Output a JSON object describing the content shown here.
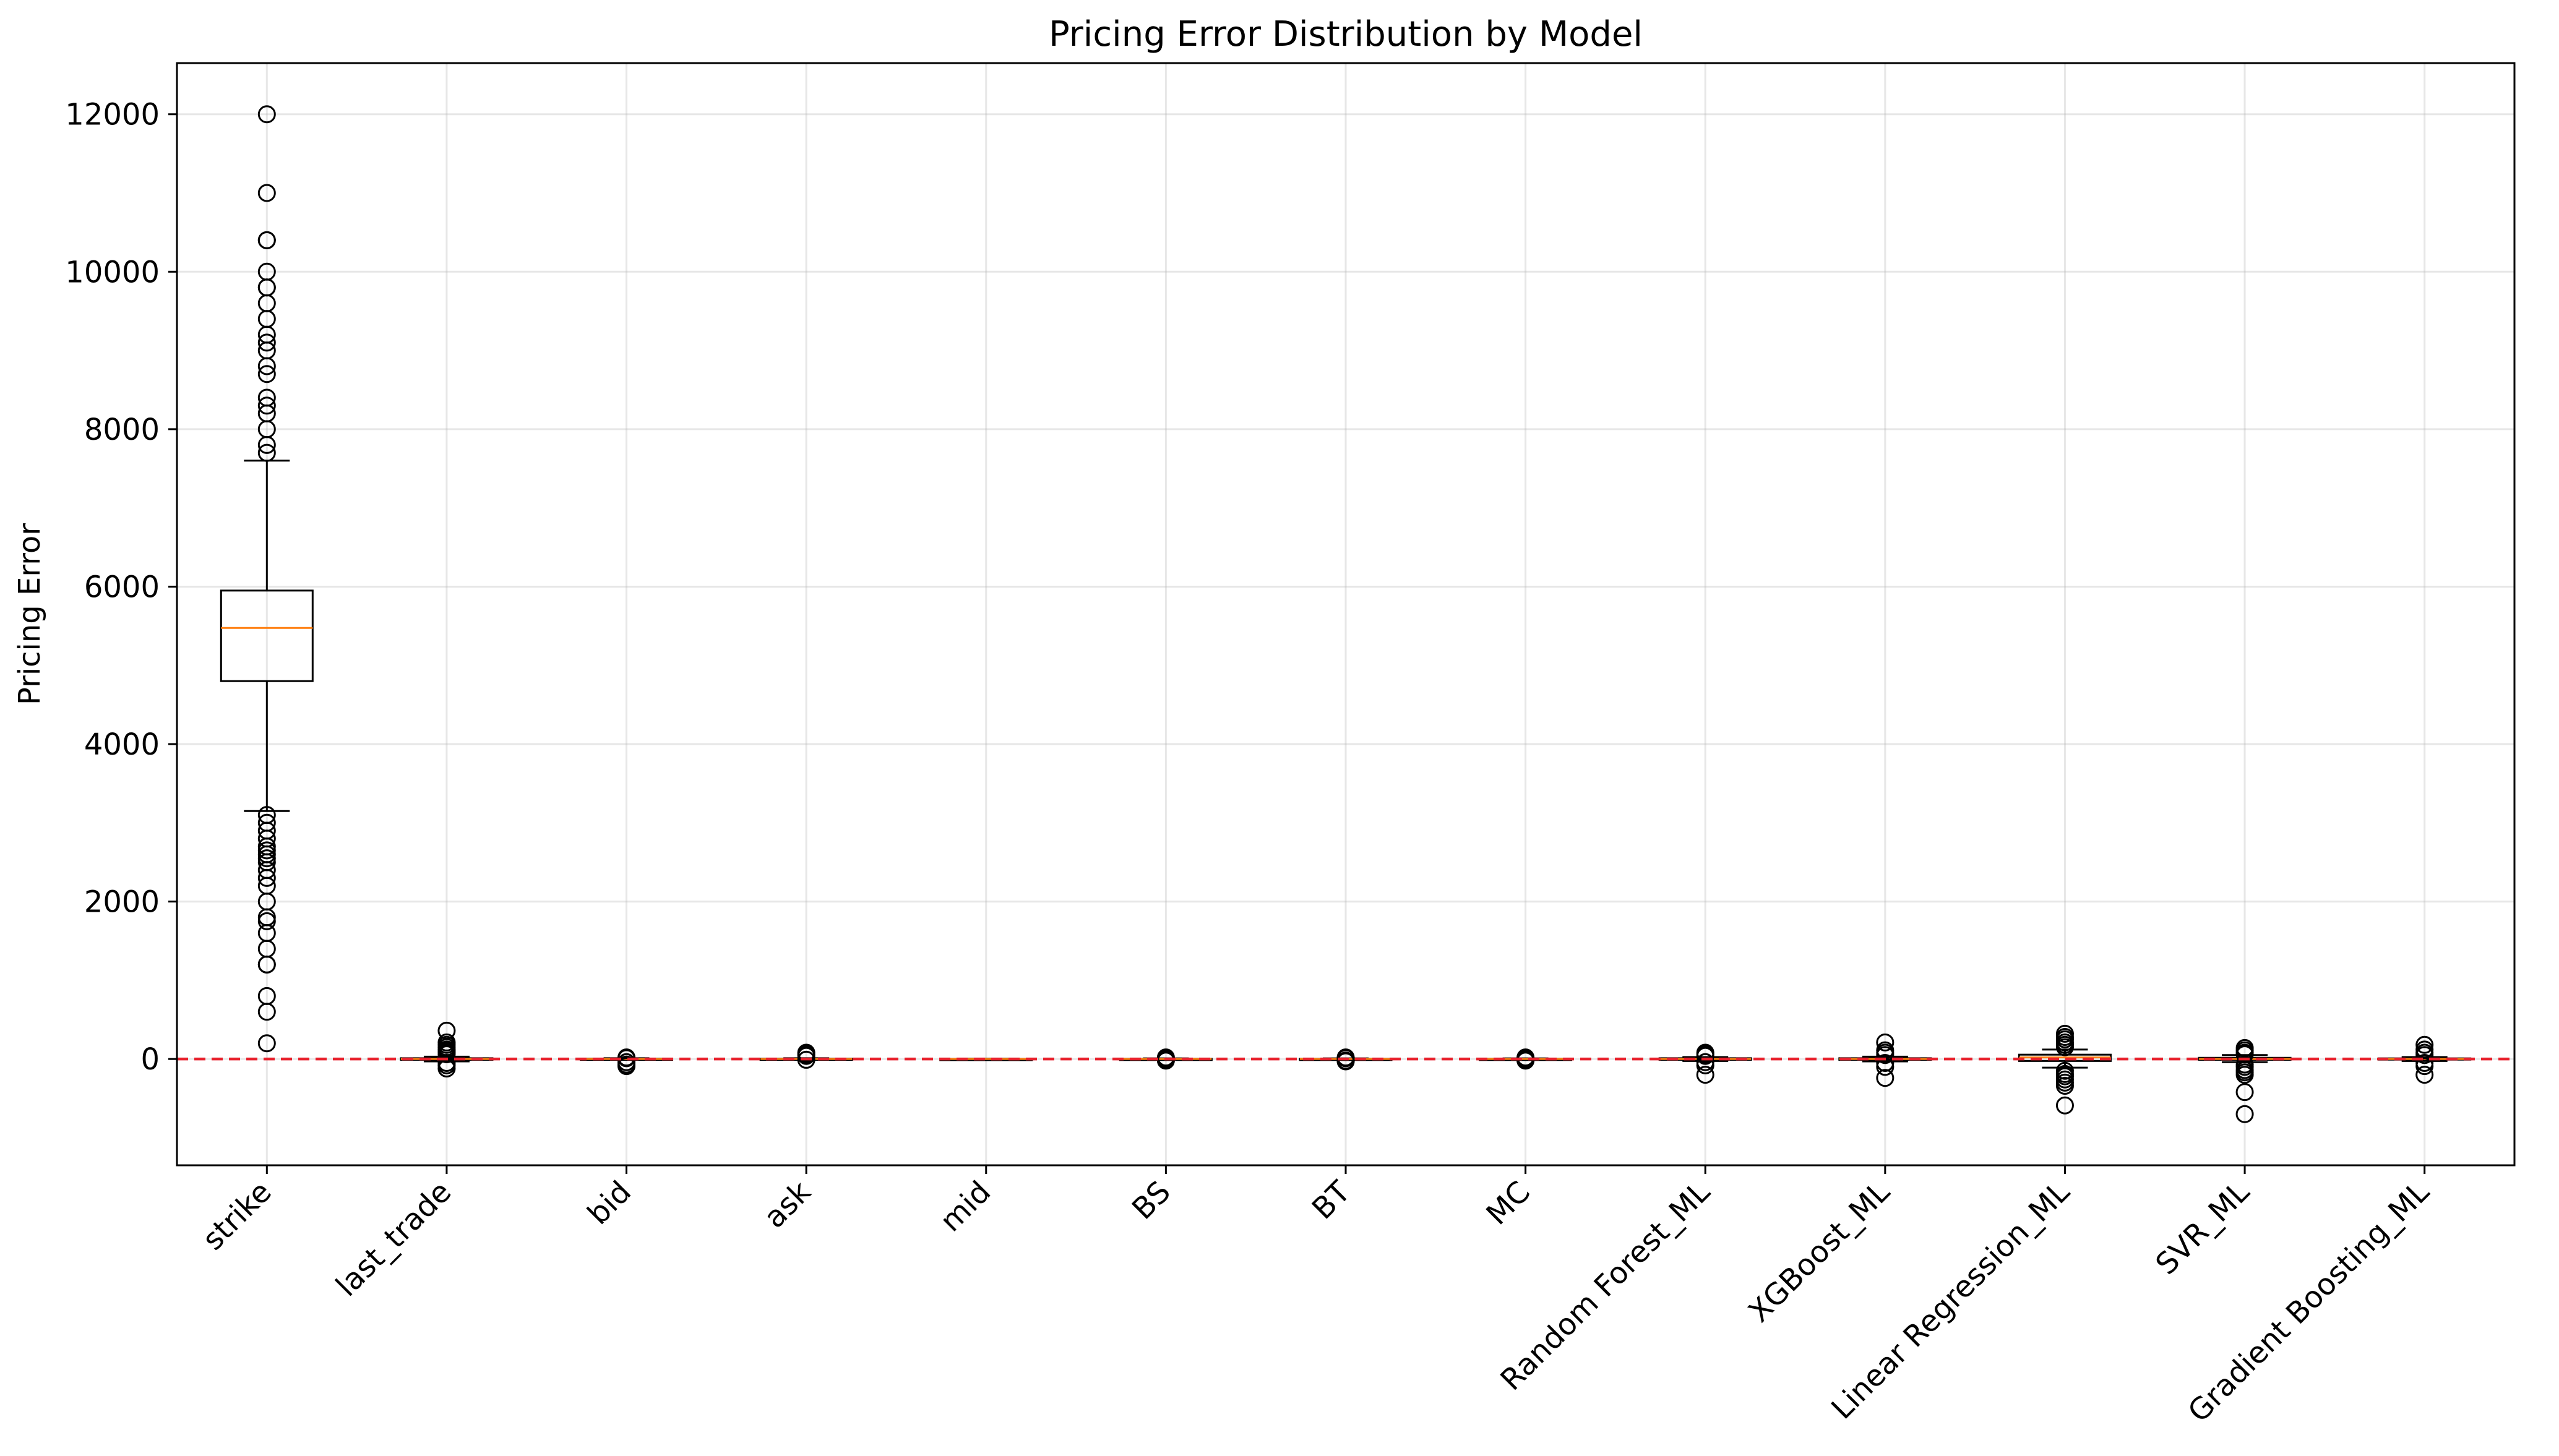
{
  "chart_data": {
    "type": "box",
    "title": "Pricing Error Distribution by Model",
    "xlabel": "",
    "ylabel": "Pricing Error",
    "ylim": [
      -1350,
      12650
    ],
    "yticks": [
      0,
      2000,
      4000,
      6000,
      8000,
      10000,
      12000
    ],
    "grid": true,
    "reference_line": {
      "y": 0,
      "style": "dashed",
      "color": "#e8212c"
    },
    "colors": {
      "box": "#000000",
      "median": "#ff7f0e",
      "grid": "#b0b0b0"
    },
    "categories": [
      "strike",
      "last_trade",
      "bid",
      "ask",
      "mid",
      "BS",
      "BT",
      "MC",
      "Random Forest_ML",
      "XGBoost_ML",
      "Linear Regression_ML",
      "SVR_ML",
      "Gradient Boosting_ML"
    ],
    "boxes": [
      {
        "category": "strike",
        "q1": 4800,
        "median": 5475,
        "q3": 5950,
        "whisker_low": 3150,
        "whisker_high": 7600,
        "outliers": [
          12000,
          11000,
          10400,
          10400,
          10000,
          9800,
          9800,
          9600,
          9400,
          9200,
          9100,
          9000,
          8800,
          8700,
          8400,
          8300,
          8200,
          8000,
          7800,
          7700,
          3100,
          3000,
          2900,
          2800,
          2700,
          2650,
          2600,
          2550,
          2500,
          2400,
          2300,
          2200,
          2000,
          1800,
          1750,
          1600,
          1400,
          1200,
          1200,
          800,
          600,
          200
        ]
      },
      {
        "category": "last_trade",
        "q1": -10,
        "median": 0,
        "q3": 10,
        "whisker_low": -30,
        "whisker_high": 30,
        "outliers": [
          360,
          210,
          180,
          150,
          120,
          100,
          80,
          60,
          -50,
          -80,
          -120
        ]
      },
      {
        "category": "bid",
        "q1": -5,
        "median": 0,
        "q3": 5,
        "whisker_low": -10,
        "whisker_high": 10,
        "outliers": [
          20,
          10,
          -40,
          -70,
          -90
        ]
      },
      {
        "category": "ask",
        "q1": -5,
        "median": 0,
        "q3": 5,
        "whisker_low": -10,
        "whisker_high": 10,
        "outliers": [
          80,
          60,
          40,
          -10
        ]
      },
      {
        "category": "mid",
        "q1": -2,
        "median": 0,
        "q3": 2,
        "whisker_low": -5,
        "whisker_high": 5,
        "outliers": []
      },
      {
        "category": "BS",
        "q1": -3,
        "median": 0,
        "q3": 3,
        "whisker_low": -8,
        "whisker_high": 8,
        "outliers": [
          20,
          10,
          -10,
          -20
        ]
      },
      {
        "category": "BT",
        "q1": -3,
        "median": 0,
        "q3": 3,
        "whisker_low": -8,
        "whisker_high": 8,
        "outliers": [
          20,
          10,
          -20,
          -30
        ]
      },
      {
        "category": "MC",
        "q1": -3,
        "median": 0,
        "q3": 3,
        "whisker_low": -8,
        "whisker_high": 8,
        "outliers": [
          20,
          10,
          -10,
          -20
        ]
      },
      {
        "category": "Random Forest_ML",
        "q1": -10,
        "median": 0,
        "q3": 10,
        "whisker_low": -25,
        "whisker_high": 25,
        "outliers": [
          80,
          60,
          40,
          -40,
          -80,
          -200
        ]
      },
      {
        "category": "XGBoost_ML",
        "q1": -10,
        "median": 0,
        "q3": 10,
        "whisker_low": -30,
        "whisker_high": 30,
        "outliers": [
          210,
          110,
          80,
          50,
          -50,
          -100,
          -240
        ]
      },
      {
        "category": "Linear Regression_ML",
        "q1": -25,
        "median": 20,
        "q3": 55,
        "whisker_low": -110,
        "whisker_high": 120,
        "outliers": [
          320,
          280,
          250,
          210,
          180,
          150,
          -150,
          -190,
          -220,
          -260,
          -300,
          -340,
          -590
        ]
      },
      {
        "category": "SVR_ML",
        "q1": -10,
        "median": 0,
        "q3": 15,
        "whisker_low": -40,
        "whisker_high": 50,
        "outliers": [
          140,
          110,
          80,
          60,
          -70,
          -100,
          -140,
          -170,
          -200,
          -420,
          -700
        ]
      },
      {
        "category": "Gradient Boosting_ML",
        "q1": -8,
        "median": 0,
        "q3": 8,
        "whisker_low": -25,
        "whisker_high": 25,
        "outliers": [
          180,
          120,
          80,
          50,
          -50,
          -90,
          -200
        ]
      }
    ]
  }
}
